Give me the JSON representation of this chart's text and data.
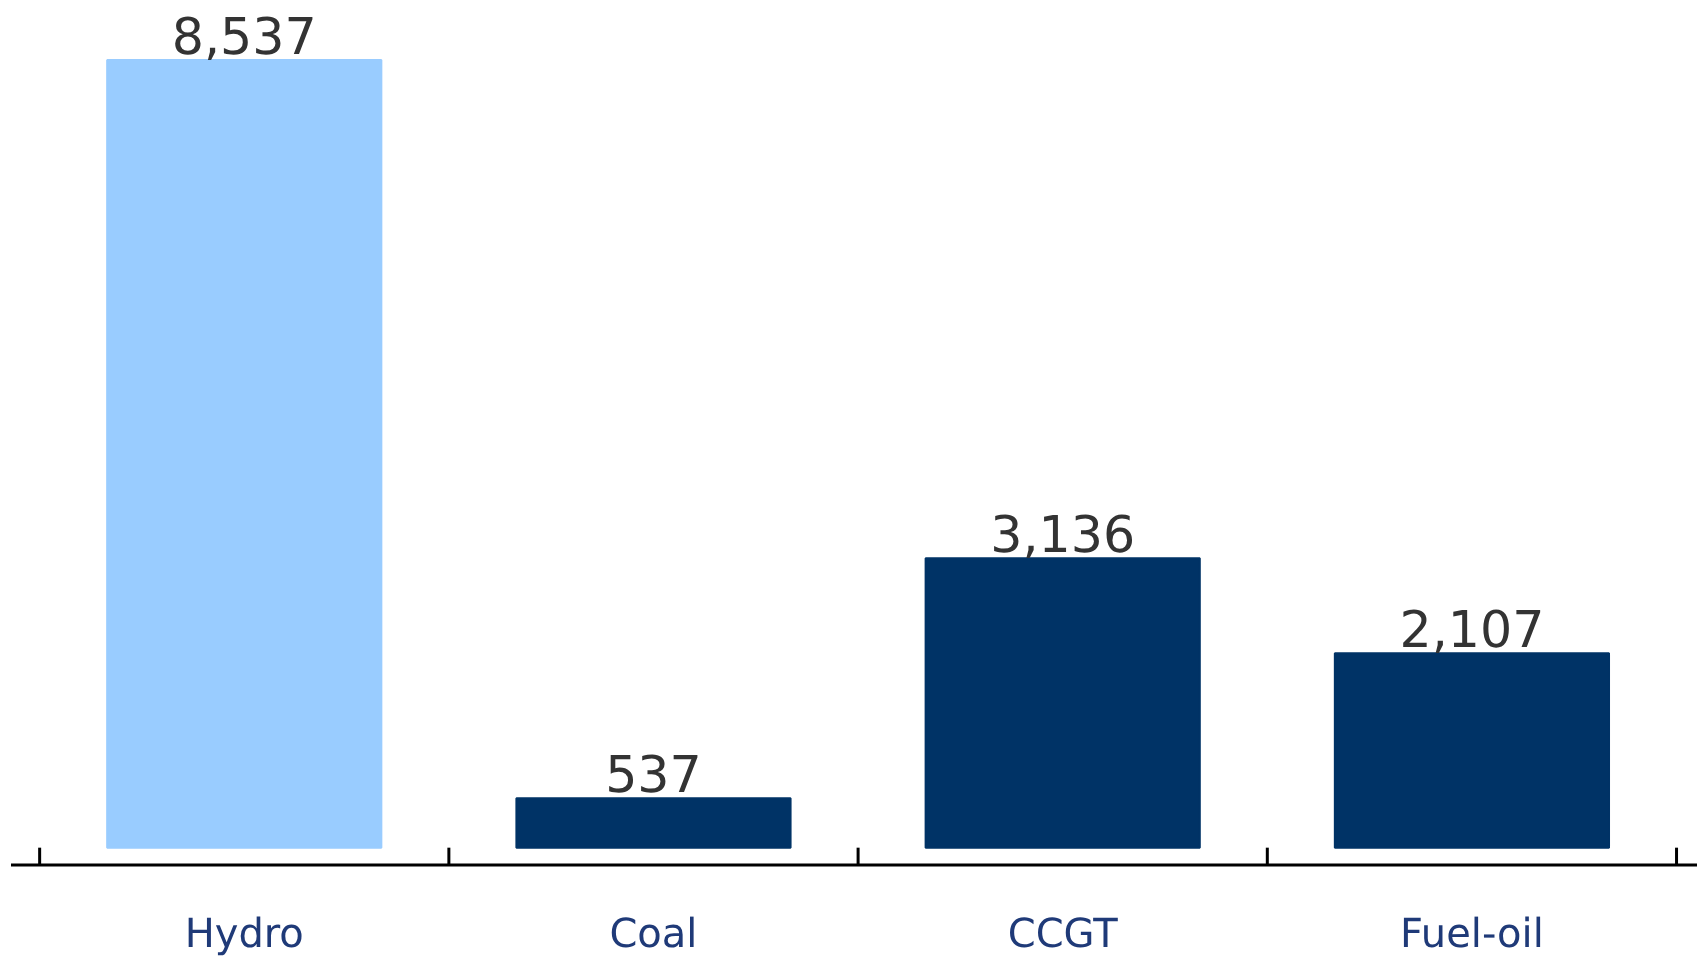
{
  "chart_data": {
    "type": "bar",
    "categories": [
      "Hydro",
      "Coal",
      "CCGT",
      "Fuel-oil"
    ],
    "values": [
      8537,
      537,
      3136,
      2107
    ],
    "value_labels": [
      "8,537",
      "537",
      "3,136",
      "2,107"
    ],
    "colors": [
      "#99ccff",
      "#003366",
      "#003366",
      "#003366"
    ],
    "grid": false
  }
}
